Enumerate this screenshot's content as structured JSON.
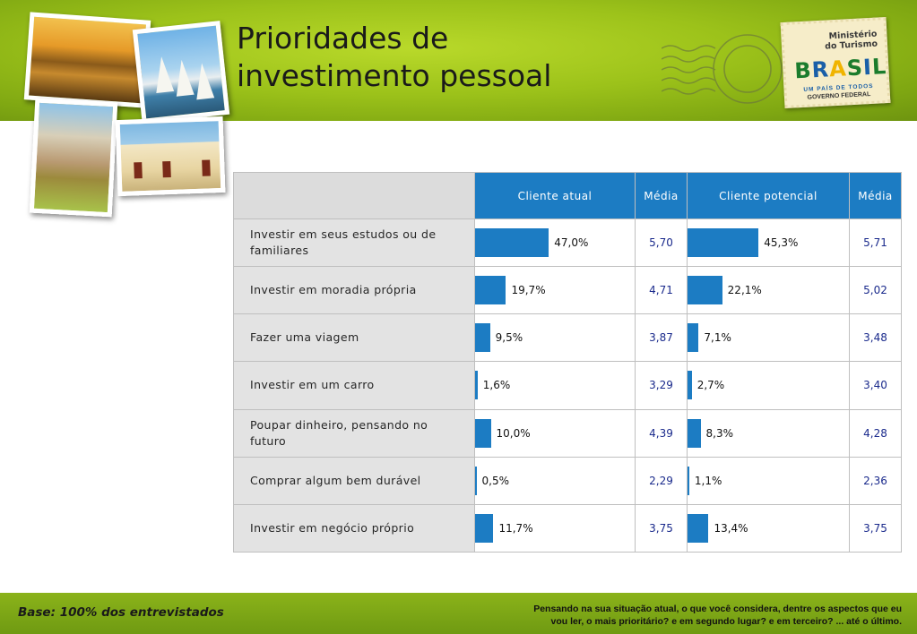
{
  "header": {
    "title_line1": "Prioridades de",
    "title_line2": "investimento pessoal"
  },
  "stamp": {
    "ministry_line1": "Ministério",
    "ministry_line2": "do Turismo",
    "brasil": "BRASIL",
    "tagline": "UM PAÍS DE TODOS",
    "government": "GOVERNO FEDERAL"
  },
  "chart_data": {
    "type": "table",
    "columns": [
      "",
      "Cliente atual",
      "Média",
      "Cliente potencial",
      "Média"
    ],
    "rows": [
      {
        "label": "Investir em seus estudos ou de familiares",
        "atual": 47.0,
        "atual_label": "47,0%",
        "media_atual": "5,70",
        "potencial": 45.3,
        "potencial_label": "45,3%",
        "media_potencial": "5,71"
      },
      {
        "label": "Investir em moradia própria",
        "atual": 19.7,
        "atual_label": "19,7%",
        "media_atual": "4,71",
        "potencial": 22.1,
        "potencial_label": "22,1%",
        "media_potencial": "5,02"
      },
      {
        "label": "Fazer uma viagem",
        "atual": 9.5,
        "atual_label": "9,5%",
        "media_atual": "3,87",
        "potencial": 7.1,
        "potencial_label": "7,1%",
        "media_potencial": "3,48"
      },
      {
        "label": "Investir em um carro",
        "atual": 1.6,
        "atual_label": "1,6%",
        "media_atual": "3,29",
        "potencial": 2.7,
        "potencial_label": "2,7%",
        "media_potencial": "3,40"
      },
      {
        "label": "Poupar dinheiro, pensando no futuro",
        "atual": 10.0,
        "atual_label": "10,0%",
        "media_atual": "4,39",
        "potencial": 8.3,
        "potencial_label": "8,3%",
        "media_potencial": "4,28"
      },
      {
        "label": "Comprar algum bem durável",
        "atual": 0.5,
        "atual_label": "0,5%",
        "media_atual": "2,29",
        "potencial": 1.1,
        "potencial_label": "1,1%",
        "media_potencial": "2,36"
      },
      {
        "label": "Investir em negócio próprio",
        "atual": 11.7,
        "atual_label": "11,7%",
        "media_atual": "3,75",
        "potencial": 13.4,
        "potencial_label": "13,4%",
        "media_potencial": "3,75"
      }
    ],
    "bar_scale_max": 100,
    "bar_color": "#1c7cc3",
    "media_color": "#1a2a8c"
  },
  "footer": {
    "base": "Base: 100% dos entrevistados",
    "question_line1": "Pensando na sua situação atual, o que você considera, dentre os aspectos que eu",
    "question_line2": "vou ler, o mais prioritário? e em segundo lugar? e em terceiro? ... até o último."
  },
  "colors": {
    "header_green": "#9cc21a",
    "footer_green": "#7fa712",
    "header_blue": "#1c7cc3",
    "label_gray": "#e3e3e3"
  }
}
